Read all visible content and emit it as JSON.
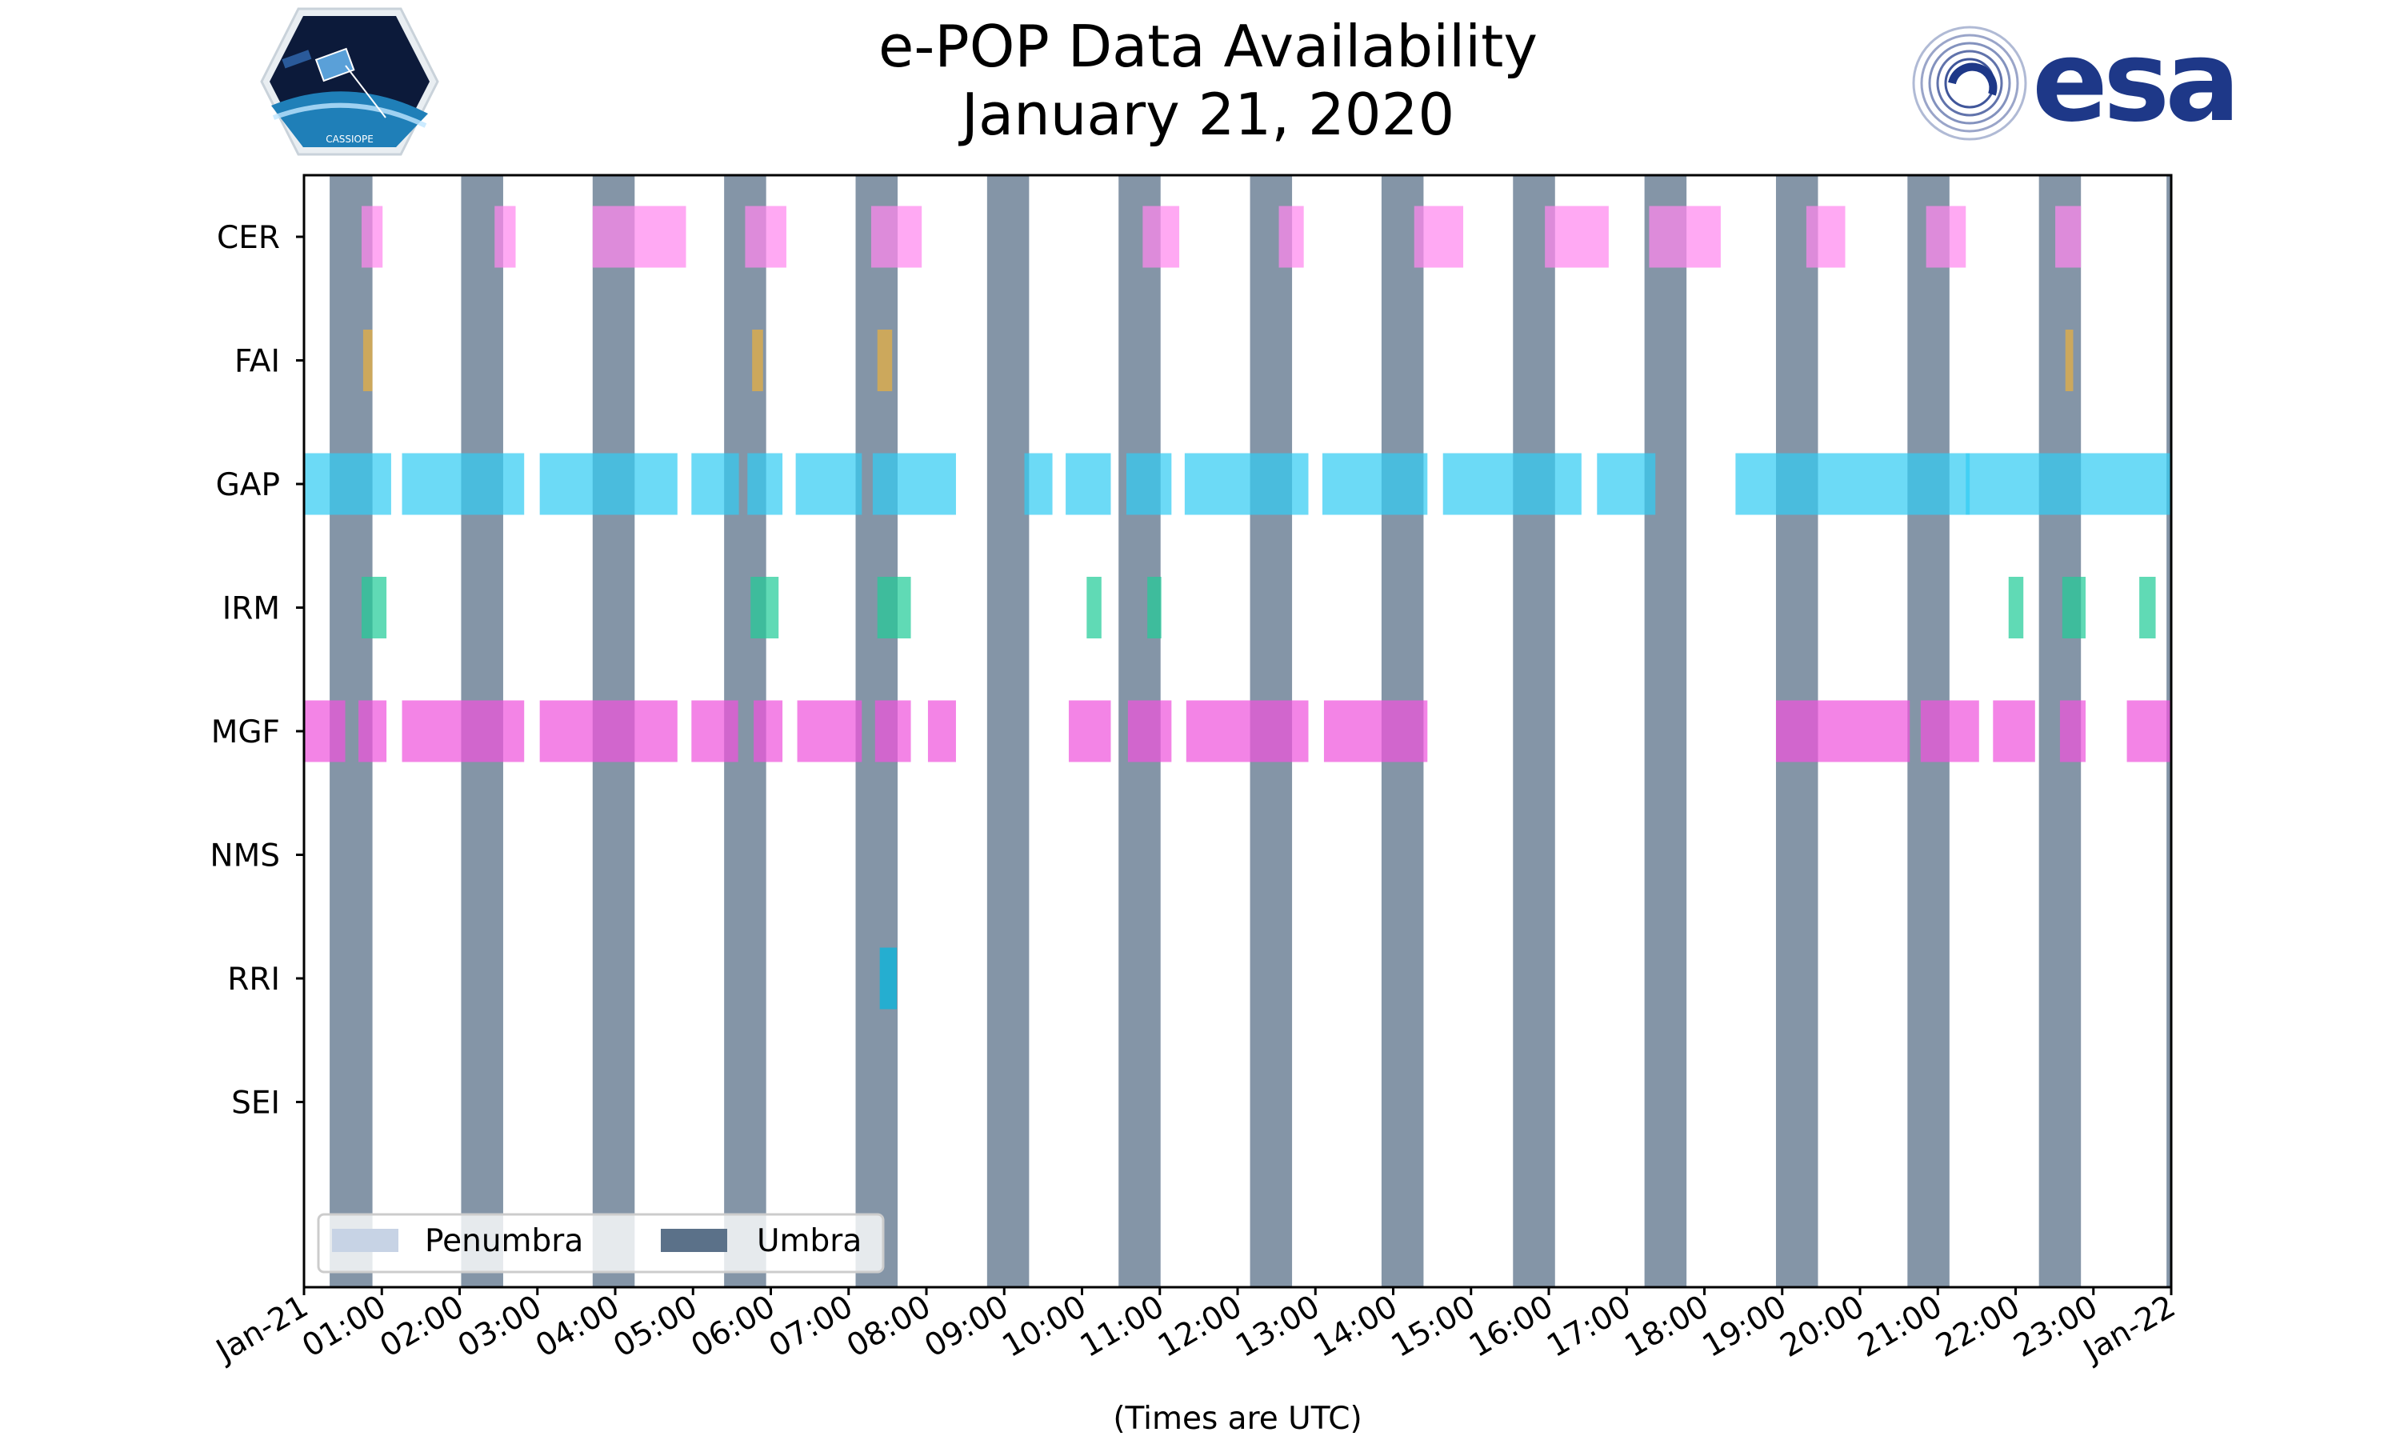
{
  "chart_data": {
    "type": "timeline",
    "title_line1": "e-POP Data Availability",
    "title_line2": "January 21, 2020",
    "xlabel": "(Times are UTC)",
    "x_unit": "hours UTC",
    "xlim": [
      0,
      24
    ],
    "x_ticks": [
      {
        "value": 0,
        "label": "Jan-21"
      },
      {
        "value": 1,
        "label": "01:00"
      },
      {
        "value": 2,
        "label": "02:00"
      },
      {
        "value": 3,
        "label": "03:00"
      },
      {
        "value": 4,
        "label": "04:00"
      },
      {
        "value": 5,
        "label": "05:00"
      },
      {
        "value": 6,
        "label": "06:00"
      },
      {
        "value": 7,
        "label": "07:00"
      },
      {
        "value": 8,
        "label": "08:00"
      },
      {
        "value": 9,
        "label": "09:00"
      },
      {
        "value": 10,
        "label": "10:00"
      },
      {
        "value": 11,
        "label": "11:00"
      },
      {
        "value": 12,
        "label": "12:00"
      },
      {
        "value": 13,
        "label": "13:00"
      },
      {
        "value": 14,
        "label": "14:00"
      },
      {
        "value": 15,
        "label": "15:00"
      },
      {
        "value": 16,
        "label": "16:00"
      },
      {
        "value": 17,
        "label": "17:00"
      },
      {
        "value": 18,
        "label": "18:00"
      },
      {
        "value": 19,
        "label": "19:00"
      },
      {
        "value": 20,
        "label": "20:00"
      },
      {
        "value": 21,
        "label": "21:00"
      },
      {
        "value": 22,
        "label": "22:00"
      },
      {
        "value": 23,
        "label": "23:00"
      },
      {
        "value": 24,
        "label": "Jan-22"
      }
    ],
    "instruments": [
      "CER",
      "FAI",
      "GAP",
      "IRM",
      "MGF",
      "NMS",
      "RRI",
      "SEI"
    ],
    "umbra_intervals": [
      [
        0.33,
        0.88
      ],
      [
        2.02,
        2.56
      ],
      [
        3.71,
        4.25
      ],
      [
        5.4,
        5.94
      ],
      [
        7.09,
        7.63
      ],
      [
        8.78,
        9.32
      ],
      [
        10.47,
        11.01
      ],
      [
        12.16,
        12.7
      ],
      [
        13.85,
        14.39
      ],
      [
        15.54,
        16.08
      ],
      [
        17.23,
        17.77
      ],
      [
        18.92,
        19.46
      ],
      [
        20.61,
        21.15
      ],
      [
        22.3,
        22.84
      ],
      [
        23.94,
        24.0
      ]
    ],
    "penumbra_intervals": [],
    "series": [
      {
        "name": "CER",
        "color": "#ff88ee",
        "intervals": [
          [
            0.74,
            1.01
          ],
          [
            2.45,
            2.72
          ],
          [
            3.71,
            4.91
          ],
          [
            5.67,
            6.2
          ],
          [
            7.29,
            7.94
          ],
          [
            10.78,
            11.25
          ],
          [
            12.53,
            12.85
          ],
          [
            14.27,
            14.9
          ],
          [
            15.95,
            16.77
          ],
          [
            17.29,
            18.21
          ],
          [
            19.31,
            19.81
          ],
          [
            20.85,
            21.36
          ],
          [
            22.51,
            22.84
          ]
        ]
      },
      {
        "name": "FAI",
        "color": "#e8b040",
        "intervals": [
          [
            0.76,
            0.88
          ],
          [
            5.76,
            5.9
          ],
          [
            7.37,
            7.56
          ],
          [
            22.64,
            22.74
          ]
        ]
      },
      {
        "name": "GAP",
        "color": "#33ccf2",
        "intervals": [
          [
            0.0,
            1.12
          ],
          [
            1.26,
            2.83
          ],
          [
            3.03,
            4.8
          ],
          [
            4.98,
            5.59
          ],
          [
            5.7,
            6.15
          ],
          [
            6.32,
            7.17
          ],
          [
            7.31,
            8.38
          ],
          [
            9.26,
            9.62
          ],
          [
            9.79,
            10.37
          ],
          [
            10.57,
            11.15
          ],
          [
            11.32,
            12.91
          ],
          [
            13.09,
            14.44
          ],
          [
            14.64,
            16.42
          ],
          [
            16.62,
            17.37
          ],
          [
            18.4,
            21.41
          ],
          [
            21.36,
            24.0
          ]
        ]
      },
      {
        "name": "IRM",
        "color": "#22cc99",
        "intervals": [
          [
            0.74,
            1.06
          ],
          [
            5.74,
            6.1
          ],
          [
            7.37,
            7.8
          ],
          [
            10.06,
            10.25
          ],
          [
            10.84,
            11.02
          ],
          [
            21.91,
            22.1
          ],
          [
            22.6,
            22.9
          ],
          [
            23.59,
            23.8
          ]
        ]
      },
      {
        "name": "MGF",
        "color": "#ee55dd",
        "intervals": [
          [
            0.0,
            0.53
          ],
          [
            0.7,
            1.06
          ],
          [
            1.26,
            2.83
          ],
          [
            3.03,
            4.8
          ],
          [
            4.98,
            5.58
          ],
          [
            5.78,
            6.15
          ],
          [
            6.34,
            7.17
          ],
          [
            7.34,
            7.8
          ],
          [
            8.02,
            8.38
          ],
          [
            9.83,
            10.37
          ],
          [
            10.59,
            11.15
          ],
          [
            11.34,
            12.91
          ],
          [
            13.11,
            14.44
          ],
          [
            18.92,
            20.64
          ],
          [
            20.78,
            21.53
          ],
          [
            21.71,
            22.25
          ],
          [
            22.57,
            22.9
          ],
          [
            23.43,
            24.0
          ]
        ]
      },
      {
        "name": "NMS",
        "color": "#999999",
        "intervals": []
      },
      {
        "name": "RRI",
        "color": "#00b8e0",
        "intervals": [
          [
            7.4,
            7.62
          ]
        ]
      },
      {
        "name": "SEI",
        "color": "#999999",
        "intervals": []
      }
    ],
    "legend": {
      "position": "lower-left",
      "entries": [
        {
          "label": "Penumbra",
          "color": "#c7d3e5"
        },
        {
          "label": "Umbra",
          "color": "#5b7189"
        }
      ]
    }
  },
  "logos": {
    "left": "CASSIOPE",
    "right": "esa"
  },
  "colors": {
    "umbra": "#5b7189",
    "penumbra": "#c7d3e5",
    "esa_blue": "#1e3888"
  }
}
